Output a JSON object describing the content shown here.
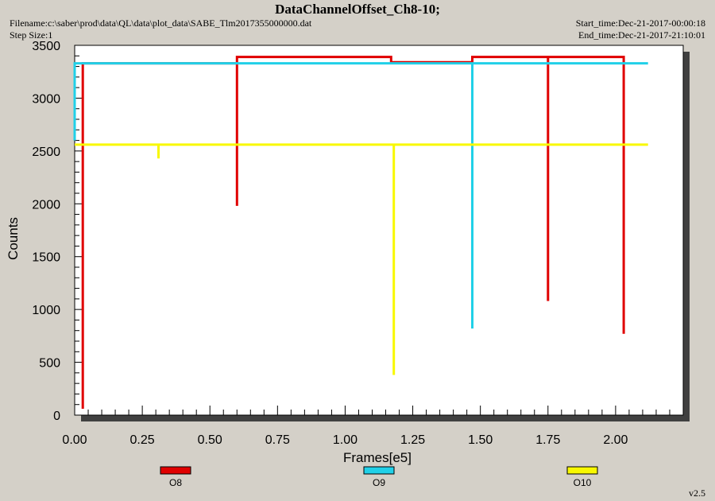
{
  "header": {
    "title": "DataChannelOffset_Ch8-10;",
    "filename": "Filename:c:\\saber\\prod\\data\\QL\\data\\plot_data\\SABE_Tlm2017355000000.dat",
    "step_size": "Step Size:1",
    "start_time": "Start_time:Dec-21-2017-00:00:18",
    "end_time": "End_time:Dec-21-2017-21:10:01"
  },
  "version": "v2.5",
  "colors": {
    "O8": "#e00000",
    "O9": "#20d0e8",
    "O10": "#f8f800"
  },
  "chart_data": {
    "type": "line",
    "title": "DataChannelOffset_Ch8-10;",
    "xlabel": "Frames[e5]",
    "ylabel": "Counts",
    "xlim": [
      0,
      2.25
    ],
    "ylim": [
      0,
      3500
    ],
    "xticks": [
      "0.00",
      "0.25",
      "0.50",
      "0.75",
      "1.00",
      "1.25",
      "1.50",
      "1.75",
      "2.00"
    ],
    "yticks": [
      "0",
      "500",
      "1000",
      "1500",
      "2000",
      "2500",
      "3000",
      "3500"
    ],
    "legend_position": "bottom",
    "series": [
      {
        "name": "O8",
        "color": "#e00000",
        "points": [
          [
            0.03,
            3330
          ],
          [
            0.03,
            60
          ],
          [
            0.03,
            3330
          ],
          [
            0.6,
            3330
          ],
          [
            0.6,
            1980
          ],
          [
            0.6,
            3390
          ],
          [
            1.17,
            3390
          ],
          [
            1.17,
            3340
          ],
          [
            1.47,
            3340
          ],
          [
            1.47,
            3390
          ],
          [
            1.75,
            3390
          ],
          [
            1.75,
            1080
          ],
          [
            1.75,
            3390
          ],
          [
            2.03,
            3390
          ],
          [
            2.03,
            770
          ]
        ]
      },
      {
        "name": "O9",
        "color": "#20d0e8",
        "points": [
          [
            0.0,
            3320
          ],
          [
            0.0,
            2600
          ],
          [
            0.0,
            3330
          ],
          [
            1.47,
            3330
          ],
          [
            1.47,
            820
          ],
          [
            1.47,
            3330
          ],
          [
            2.12,
            3330
          ]
        ]
      },
      {
        "name": "O10",
        "color": "#f8f800",
        "points": [
          [
            0.0,
            2560
          ],
          [
            0.31,
            2560
          ],
          [
            0.31,
            2430
          ],
          [
            0.31,
            2560
          ],
          [
            1.18,
            2560
          ],
          [
            1.18,
            380
          ],
          [
            1.18,
            2560
          ],
          [
            2.12,
            2560
          ]
        ]
      }
    ]
  }
}
